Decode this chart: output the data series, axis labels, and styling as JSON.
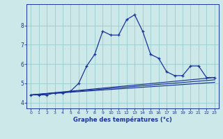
{
  "xlabel": "Graphe des températures (°c)",
  "x_ticks": [
    0,
    1,
    2,
    3,
    4,
    5,
    6,
    7,
    8,
    9,
    10,
    11,
    12,
    13,
    14,
    15,
    16,
    17,
    18,
    19,
    20,
    21,
    22,
    23
  ],
  "y_ticks": [
    4,
    5,
    6,
    7,
    8
  ],
  "xlim": [
    -0.5,
    23.5
  ],
  "ylim": [
    3.7,
    9.1
  ],
  "background_color": "#cce8e8",
  "grid_color": "#99cccc",
  "line_color": "#1a3399",
  "curve1_x": [
    0,
    1,
    2,
    3,
    4,
    5,
    6,
    7,
    8,
    9,
    10,
    11,
    12,
    13,
    14,
    15,
    16,
    17,
    18,
    19,
    20,
    21,
    22,
    23
  ],
  "curve1_y": [
    4.4,
    4.4,
    4.4,
    4.5,
    4.5,
    4.6,
    5.0,
    5.9,
    6.5,
    7.7,
    7.5,
    7.5,
    8.3,
    8.55,
    7.7,
    6.5,
    6.3,
    5.6,
    5.4,
    5.4,
    5.9,
    5.9,
    5.3,
    5.3
  ],
  "curve2_x": [
    0,
    23
  ],
  "curve2_y": [
    4.4,
    5.3
  ],
  "curve3_x": [
    0,
    23
  ],
  "curve3_y": [
    4.4,
    5.05
  ],
  "curve4_x": [
    0,
    23
  ],
  "curve4_y": [
    4.4,
    5.18
  ]
}
